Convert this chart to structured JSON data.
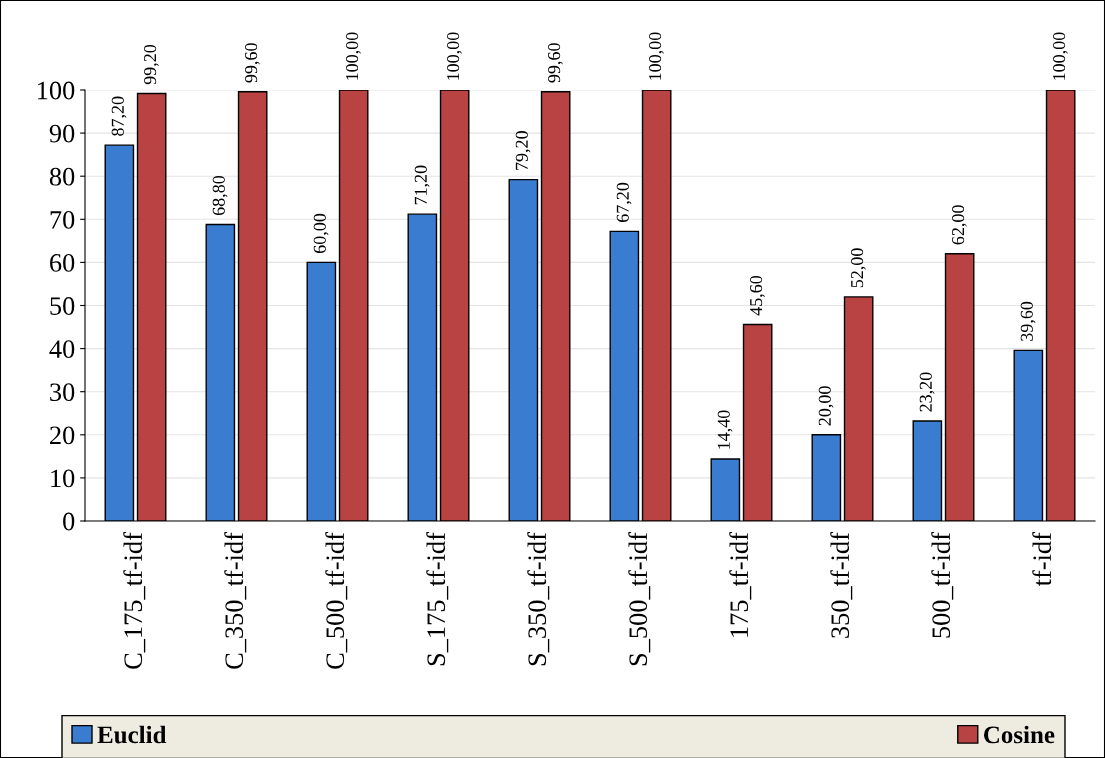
{
  "chart_data": {
    "type": "bar",
    "categories": [
      "C_175_tf-idf",
      "C_350_tf-idf",
      "C_500_tf-idf",
      "S_175_tf-idf",
      "S_350_tf-idf",
      "S_500_tf-idf",
      "175_tf-idf",
      "350_tf-idf",
      "500_tf-idf",
      "tf-idf"
    ],
    "series": [
      {
        "name": "Euclid",
        "color": "#3a7dd0",
        "values": [
          87.2,
          68.8,
          60.0,
          71.2,
          79.2,
          67.2,
          14.4,
          20.0,
          23.2,
          39.6
        ],
        "value_labels": [
          "87,20",
          "68,80",
          "60,00",
          "71,20",
          "79,20",
          "67,20",
          "14,40",
          "20,00",
          "23,20",
          "39,60"
        ]
      },
      {
        "name": "Cosine",
        "color": "#b94343",
        "values": [
          99.2,
          99.6,
          100.0,
          100.0,
          99.6,
          100.0,
          45.6,
          52.0,
          62.0,
          100.0
        ],
        "value_labels": [
          "99,20",
          "99,60",
          "100,00",
          "100,00",
          "99,60",
          "100,00",
          "45,60",
          "52,00",
          "62,00",
          "100,00"
        ]
      }
    ],
    "ylim": [
      0,
      100
    ],
    "yticks": [
      0,
      10,
      20,
      30,
      40,
      50,
      60,
      70,
      80,
      90,
      100
    ],
    "grid": "y",
    "legend": "bottom"
  }
}
